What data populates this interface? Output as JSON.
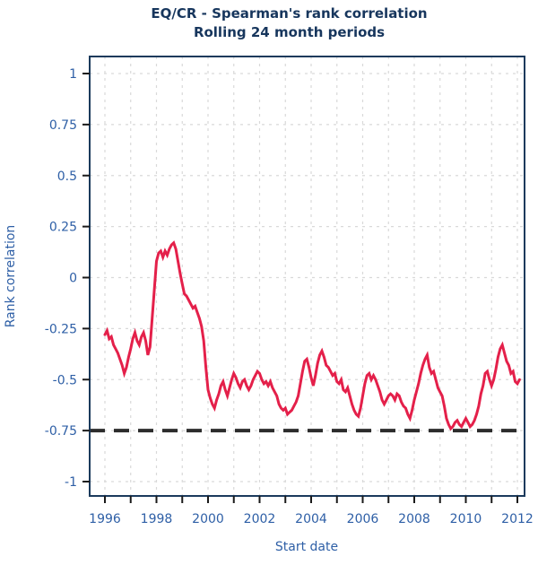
{
  "title": {
    "line1": "EQ/CR - Spearman's rank correlation",
    "line2": "Rolling 24 month periods"
  },
  "chart_data": {
    "type": "line",
    "title": "EQ/CR - Spearman's rank correlation",
    "subtitle": "Rolling 24 month periods",
    "xlabel": "Start date",
    "ylabel": "Rank correlation",
    "xlim": [
      1995.4,
      2012.3
    ],
    "ylim": [
      -1.08,
      1.085
    ],
    "grid": "dashed light gray, vertical every year, horizontal every 0.25",
    "legend_position": "none",
    "x_tick_years": [
      1996,
      1997,
      1998,
      1999,
      2000,
      2001,
      2002,
      2003,
      2004,
      2005,
      2006,
      2007,
      2008,
      2009,
      2010,
      2011,
      2012
    ],
    "x_tick_labels": [
      "1996",
      "1998",
      "2000",
      "2002",
      "2004",
      "2006",
      "2008",
      "2010",
      "2012"
    ],
    "x_label_years": [
      1996,
      1998,
      2000,
      2002,
      2004,
      2006,
      2008,
      2010,
      2012
    ],
    "y_ticks": [
      1,
      0.75,
      0.5,
      0.25,
      0,
      -0.25,
      -0.5,
      -0.75,
      -1
    ],
    "y_tick_labels": [
      "1",
      "0.75",
      "0.5",
      "0.25",
      "0",
      "-0.25",
      "-0.5",
      "-0.75",
      "-1"
    ],
    "reference_line": {
      "y": -0.75,
      "style": "dashed",
      "color": "#2d2d2d"
    },
    "series": [
      {
        "name": "EQ/CR rolling 24-month Spearman rank correlation",
        "color": "#e4204a",
        "x_start": 1996.0,
        "x_step": 0.0833333,
        "values": [
          -0.28,
          -0.26,
          -0.3,
          -0.29,
          -0.33,
          -0.35,
          -0.37,
          -0.4,
          -0.43,
          -0.47,
          -0.44,
          -0.39,
          -0.35,
          -0.3,
          -0.27,
          -0.31,
          -0.33,
          -0.29,
          -0.27,
          -0.31,
          -0.38,
          -0.34,
          -0.2,
          -0.06,
          0.08,
          0.12,
          0.13,
          0.1,
          0.13,
          0.11,
          0.14,
          0.16,
          0.17,
          0.14,
          0.08,
          0.02,
          -0.03,
          -0.08,
          -0.09,
          -0.11,
          -0.13,
          -0.15,
          -0.14,
          -0.17,
          -0.2,
          -0.24,
          -0.31,
          -0.44,
          -0.55,
          -0.59,
          -0.62,
          -0.64,
          -0.6,
          -0.57,
          -0.53,
          -0.51,
          -0.55,
          -0.58,
          -0.54,
          -0.5,
          -0.47,
          -0.49,
          -0.52,
          -0.54,
          -0.51,
          -0.5,
          -0.53,
          -0.55,
          -0.53,
          -0.5,
          -0.48,
          -0.46,
          -0.47,
          -0.5,
          -0.52,
          -0.51,
          -0.53,
          -0.51,
          -0.54,
          -0.56,
          -0.58,
          -0.62,
          -0.64,
          -0.65,
          -0.64,
          -0.67,
          -0.66,
          -0.65,
          -0.63,
          -0.61,
          -0.58,
          -0.52,
          -0.46,
          -0.41,
          -0.4,
          -0.44,
          -0.49,
          -0.53,
          -0.48,
          -0.42,
          -0.38,
          -0.36,
          -0.39,
          -0.43,
          -0.44,
          -0.46,
          -0.48,
          -0.47,
          -0.51,
          -0.52,
          -0.5,
          -0.55,
          -0.56,
          -0.54,
          -0.58,
          -0.62,
          -0.65,
          -0.67,
          -0.68,
          -0.64,
          -0.58,
          -0.52,
          -0.48,
          -0.47,
          -0.5,
          -0.48,
          -0.5,
          -0.53,
          -0.56,
          -0.6,
          -0.62,
          -0.6,
          -0.58,
          -0.57,
          -0.58,
          -0.6,
          -0.57,
          -0.58,
          -0.61,
          -0.63,
          -0.64,
          -0.67,
          -0.69,
          -0.65,
          -0.6,
          -0.56,
          -0.52,
          -0.47,
          -0.43,
          -0.4,
          -0.38,
          -0.44,
          -0.47,
          -0.46,
          -0.5,
          -0.54,
          -0.56,
          -0.58,
          -0.63,
          -0.69,
          -0.72,
          -0.74,
          -0.73,
          -0.71,
          -0.7,
          -0.72,
          -0.73,
          -0.71,
          -0.69,
          -0.71,
          -0.73,
          -0.72,
          -0.7,
          -0.67,
          -0.63,
          -0.57,
          -0.53,
          -0.47,
          -0.46,
          -0.5,
          -0.53,
          -0.5,
          -0.45,
          -0.39,
          -0.35,
          -0.33,
          -0.37,
          -0.41,
          -0.43,
          -0.47,
          -0.46,
          -0.51,
          -0.52,
          -0.5
        ]
      }
    ]
  },
  "colors": {
    "title": "#17365d",
    "axis_labels": "#2e5fa6",
    "box_border": "#1b3a5c",
    "tick": "#1a1a1a",
    "grid": "#d9d9d9",
    "reference_line": "#2d2d2d",
    "series": "#e4204a",
    "background": "#ffffff"
  }
}
